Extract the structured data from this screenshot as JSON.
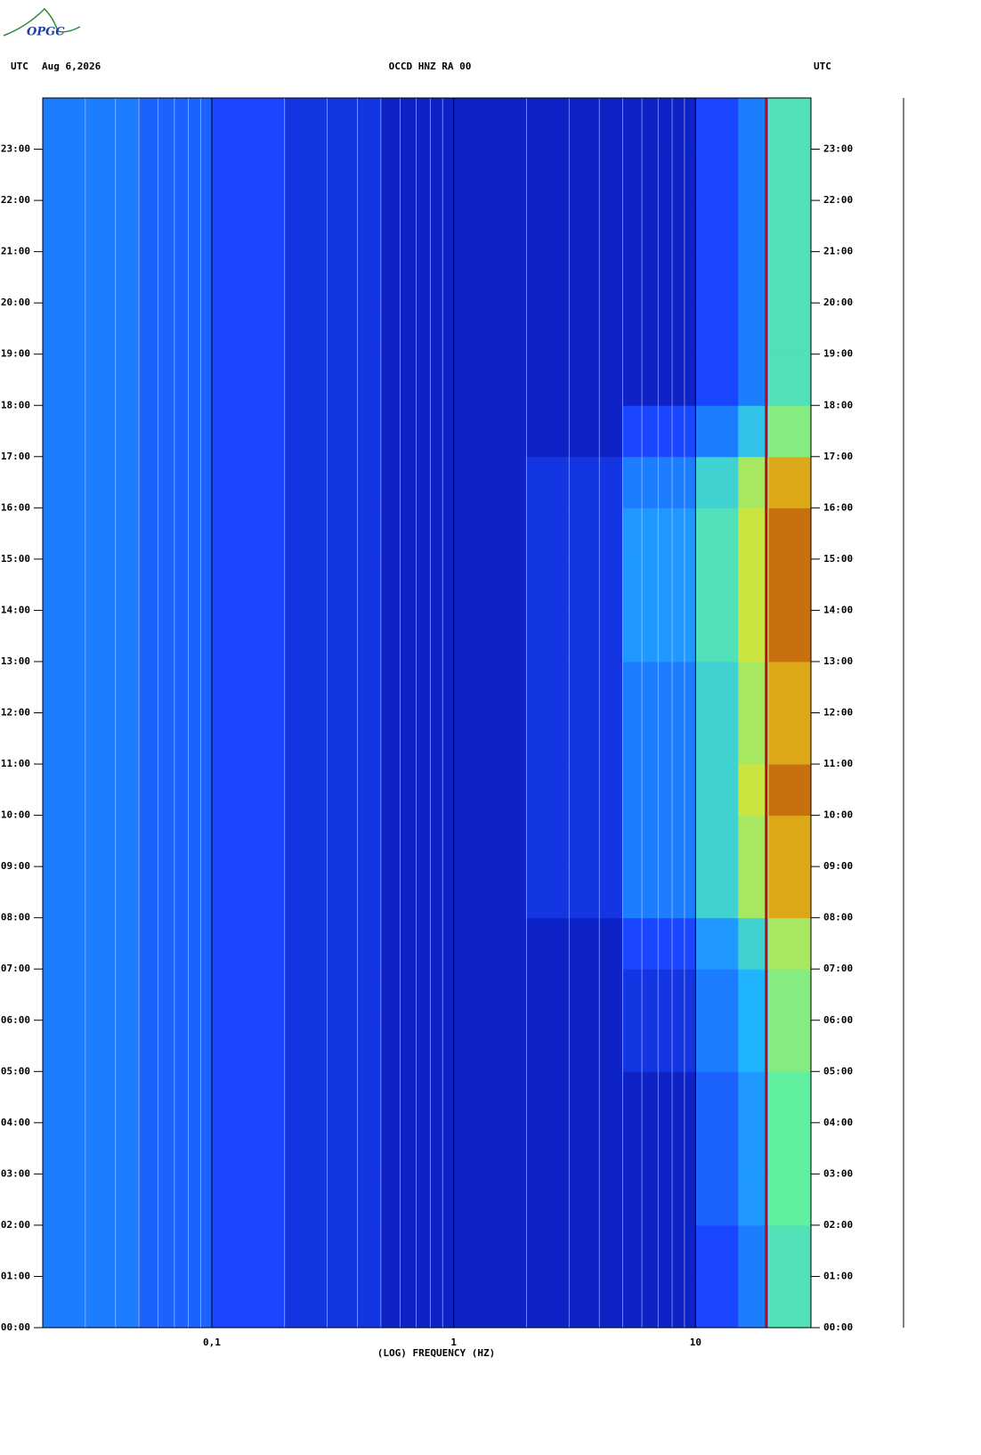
{
  "header": {
    "logo": "OPGC",
    "left_label": "UTC",
    "date": "Aug 6,2026",
    "station": "OCCD HNZ RA 00",
    "right_label": "UTC"
  },
  "chart_data": {
    "type": "spectrogram",
    "xlabel": "(LOG) FREQUENCY (HZ)",
    "log_x": true,
    "xlim": [
      0.02,
      30
    ],
    "ylim": [
      0,
      24
    ],
    "xticks": [
      {
        "value": 0.1,
        "label": "0,1"
      },
      {
        "value": 1,
        "label": "1"
      },
      {
        "value": 10,
        "label": "10"
      }
    ],
    "minor_xticks": [
      0.03,
      0.04,
      0.05,
      0.06,
      0.07,
      0.08,
      0.09,
      0.2,
      0.3,
      0.4,
      0.5,
      0.6,
      0.7,
      0.8,
      0.9,
      2,
      3,
      4,
      5,
      6,
      7,
      8,
      9,
      20
    ],
    "yticks": [
      {
        "value": 0,
        "label": "00:00"
      },
      {
        "value": 1,
        "label": "01:00"
      },
      {
        "value": 2,
        "label": "02:00"
      },
      {
        "value": 3,
        "label": "03:00"
      },
      {
        "value": 4,
        "label": "04:00"
      },
      {
        "value": 5,
        "label": "05:00"
      },
      {
        "value": 6,
        "label": "06:00"
      },
      {
        "value": 7,
        "label": "07:00"
      },
      {
        "value": 8,
        "label": "08:00"
      },
      {
        "value": 9,
        "label": "09:00"
      },
      {
        "value": 10,
        "label": "10:00"
      },
      {
        "value": 11,
        "label": "11:00"
      },
      {
        "value": 12,
        "label": "12:00"
      },
      {
        "value": 13,
        "label": "13:00"
      },
      {
        "value": 14,
        "label": "14:00"
      },
      {
        "value": 15,
        "label": "15:00"
      },
      {
        "value": 16,
        "label": "16:00"
      },
      {
        "value": 17,
        "label": "17:00"
      },
      {
        "value": 18,
        "label": "18:00"
      },
      {
        "value": 19,
        "label": "19:00"
      },
      {
        "value": 20,
        "label": "20:00"
      },
      {
        "value": 21,
        "label": "21:00"
      },
      {
        "value": 22,
        "label": "22:00"
      },
      {
        "value": 23,
        "label": "23:00"
      }
    ],
    "xbins": [
      0.02,
      0.05,
      0.1,
      0.2,
      0.5,
      1,
      2,
      5,
      10,
      15,
      20,
      30
    ],
    "ybins": [
      0,
      1,
      2,
      3,
      4,
      5,
      6,
      7,
      8,
      9,
      10,
      11,
      12,
      13,
      14,
      15,
      16,
      17,
      18,
      19,
      20,
      21,
      22,
      23,
      24
    ],
    "zlim": [
      0,
      10
    ],
    "colormap": [
      "#00008a",
      "#1a46ff",
      "#20b4ff",
      "#60f0a0",
      "#f0e020",
      "#a00000"
    ],
    "values": [
      [
        3,
        2.5,
        2,
        1.5,
        1,
        1,
        1,
        1,
        2,
        3,
        5.5
      ],
      [
        3,
        2.5,
        2,
        1.5,
        1,
        1,
        1,
        1,
        2,
        3,
        5.5
      ],
      [
        3,
        2.5,
        2,
        1.5,
        1,
        1,
        1,
        1,
        2.5,
        3.5,
        6
      ],
      [
        3,
        2.5,
        2,
        1.5,
        1,
        1,
        1,
        1,
        2.5,
        3.5,
        6
      ],
      [
        3,
        2.5,
        2,
        1.5,
        1,
        1,
        1,
        1,
        2.5,
        3.5,
        6
      ],
      [
        3,
        2.5,
        2,
        1.5,
        1,
        1,
        1,
        1.5,
        3,
        4,
        6.5
      ],
      [
        3,
        2.5,
        2,
        1.5,
        1,
        1,
        1,
        1.5,
        3,
        4,
        6.5
      ],
      [
        3,
        2.5,
        2,
        1.5,
        1,
        1,
        1,
        2,
        3.5,
        5,
        7
      ],
      [
        3,
        2.5,
        2,
        1.5,
        1,
        1,
        1.5,
        3,
        5,
        7,
        8.5
      ],
      [
        3,
        2.5,
        2,
        1.5,
        1,
        1,
        1.5,
        3,
        5,
        7,
        8.5
      ],
      [
        3,
        2.5,
        2,
        1.5,
        1,
        1,
        1.5,
        3,
        5,
        7.5,
        9
      ],
      [
        3,
        2.5,
        2,
        1.5,
        1,
        1,
        1.5,
        3,
        5,
        7,
        8.5
      ],
      [
        3,
        2.5,
        2,
        1.5,
        1,
        1,
        1.5,
        3,
        5,
        7,
        8.5
      ],
      [
        3,
        2.5,
        2,
        1.5,
        1,
        1,
        1.5,
        3.5,
        5.5,
        7.5,
        9
      ],
      [
        3,
        2.5,
        2,
        1.5,
        1,
        1,
        1.5,
        3.5,
        5.5,
        7.5,
        9
      ],
      [
        3,
        2.5,
        2,
        1.5,
        1,
        1,
        1.5,
        3.5,
        5.5,
        7.5,
        9
      ],
      [
        3,
        2.5,
        2,
        1.5,
        1,
        1,
        1.5,
        3,
        5,
        7,
        8.5
      ],
      [
        3,
        2.5,
        2,
        1.5,
        1,
        1,
        1,
        2,
        3,
        4.5,
        6.5
      ],
      [
        3,
        2.5,
        2,
        1.5,
        1,
        1,
        1,
        1,
        2,
        3,
        5.5
      ],
      [
        3,
        2.5,
        2,
        1.5,
        1,
        1,
        1,
        1,
        2,
        3,
        5.5
      ],
      [
        3,
        2.5,
        2,
        1.5,
        1,
        1,
        1,
        1,
        2,
        3,
        5.5
      ],
      [
        3,
        2.5,
        2,
        1.5,
        1,
        1,
        1,
        1,
        2,
        3,
        5.5
      ],
      [
        3,
        2.5,
        2,
        1.5,
        1,
        1,
        1,
        1,
        2,
        3,
        5.5
      ],
      [
        3,
        2.5,
        2,
        1.5,
        1,
        1,
        1,
        1,
        2,
        3,
        5.5
      ]
    ],
    "peak_line": {
      "x": 19.6,
      "color": "#b01010"
    }
  }
}
